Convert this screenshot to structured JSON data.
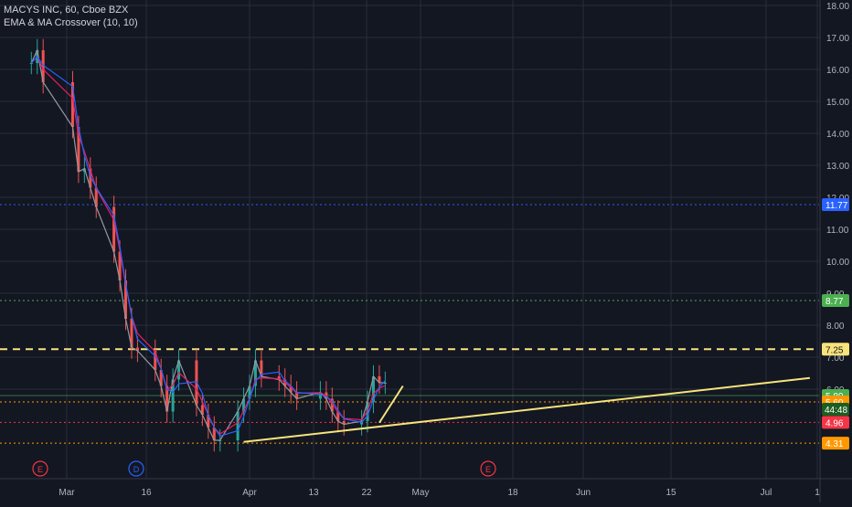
{
  "legend": {
    "symbol_line": "MACYS INC, 60, Cboe BZX",
    "indicator_line": "EMA & MA Crossover (10, 10)"
  },
  "colors": {
    "background": "#131722",
    "grid": "#2a2e39",
    "axis_text": "#b2b5be",
    "candle_up": "#26a69a",
    "candle_down": "#ef5350",
    "ema": "#e91e63",
    "ma": "#2962ff",
    "trendline": "#f7e37c",
    "level_blue": "#2962ff",
    "level_green": "#4caf50",
    "level_yellow": "#f7e37c",
    "level_orange": "#ff9800",
    "level_red": "#f23645",
    "earnings_marker": "#f23645",
    "dividend_marker": "#2962ff"
  },
  "chart_data": {
    "type": "line",
    "ylim": [
      3.3,
      18.1
    ],
    "y_ticks": [
      "18.00",
      "17.00",
      "16.00",
      "15.00",
      "14.00",
      "13.00",
      "12.00",
      "11.00",
      "10.00",
      "9.00",
      "8.00",
      "7.00",
      "6.00"
    ],
    "x_ticks": [
      "Mar",
      "16",
      "Apr",
      "13",
      "22",
      "May",
      "18",
      "Jun",
      "15",
      "Jul",
      "1"
    ],
    "price_series": {
      "x": [
        "Feb 26",
        "Feb 27",
        "Feb 28",
        "Mar 2",
        "Mar 3",
        "Mar 4",
        "Mar 5",
        "Mar 6",
        "Mar 9",
        "Mar 10",
        "Mar 11",
        "Mar 12",
        "Mar 13",
        "Mar 16",
        "Mar 17",
        "Mar 18",
        "Mar 19",
        "Mar 20",
        "Mar 23",
        "Mar 24",
        "Mar 25",
        "Mar 26",
        "Mar 27",
        "Mar 30",
        "Mar 31",
        "Apr 1",
        "Apr 2",
        "Apr 3",
        "Apr 6",
        "Apr 7",
        "Apr 8",
        "Apr 9",
        "Apr 13",
        "Apr 14",
        "Apr 15",
        "Apr 16",
        "Apr 17",
        "Apr 20",
        "Apr 21",
        "Apr 22",
        "Apr 23",
        "Apr 24"
      ],
      "close": [
        16.2,
        16.6,
        15.6,
        14.2,
        12.8,
        12.9,
        12.3,
        11.7,
        10.3,
        9.4,
        8.2,
        7.3,
        7.2,
        6.6,
        6.1,
        5.3,
        6.3,
        6.9,
        5.5,
        5.2,
        4.8,
        4.4,
        4.4,
        5.3,
        5.7,
        6.1,
        6.9,
        6.4,
        6.3,
        6.1,
        5.9,
        5.7,
        5.9,
        5.7,
        5.3,
        5.0,
        4.9,
        5.0,
        5.6,
        6.4,
        6.2,
        6.2
      ]
    },
    "horizontal_levels": [
      {
        "label": "11.77",
        "value": 11.77,
        "style": "dotted",
        "color": "#2962ff"
      },
      {
        "label": "8.77",
        "value": 8.77,
        "style": "dotted",
        "color": "#4caf50"
      },
      {
        "label": "7.25",
        "value": 7.25,
        "style": "dashed",
        "color": "#f7e37c"
      },
      {
        "label": "5.80",
        "value": 5.8,
        "style": "solid",
        "color": "#4caf50"
      },
      {
        "label": "5.60",
        "value": 5.6,
        "style": "dotted",
        "color": "#ff9800"
      },
      {
        "label": "4.96",
        "value": 4.96,
        "style": "dotted",
        "color": "#f23645"
      },
      {
        "label": "4.31",
        "value": 4.31,
        "style": "dotted",
        "color": "#ff9800"
      }
    ],
    "countdown_label": "44:48",
    "trendlines": [
      {
        "name": "rising-support",
        "x0": "Mar 31",
        "y0": 4.35,
        "x1": "Jul 5",
        "y1": 6.35
      },
      {
        "name": "breakout-line",
        "x0": "Apr 23",
        "y0": 4.95,
        "x1": "Apr 27",
        "y1": 6.1
      }
    ],
    "event_markers": [
      {
        "letter": "E",
        "x": "Feb 26",
        "type": "earnings"
      },
      {
        "letter": "D",
        "x": "Mar 13",
        "type": "dividend"
      },
      {
        "letter": "E",
        "x": "May 13",
        "type": "earnings"
      }
    ]
  }
}
